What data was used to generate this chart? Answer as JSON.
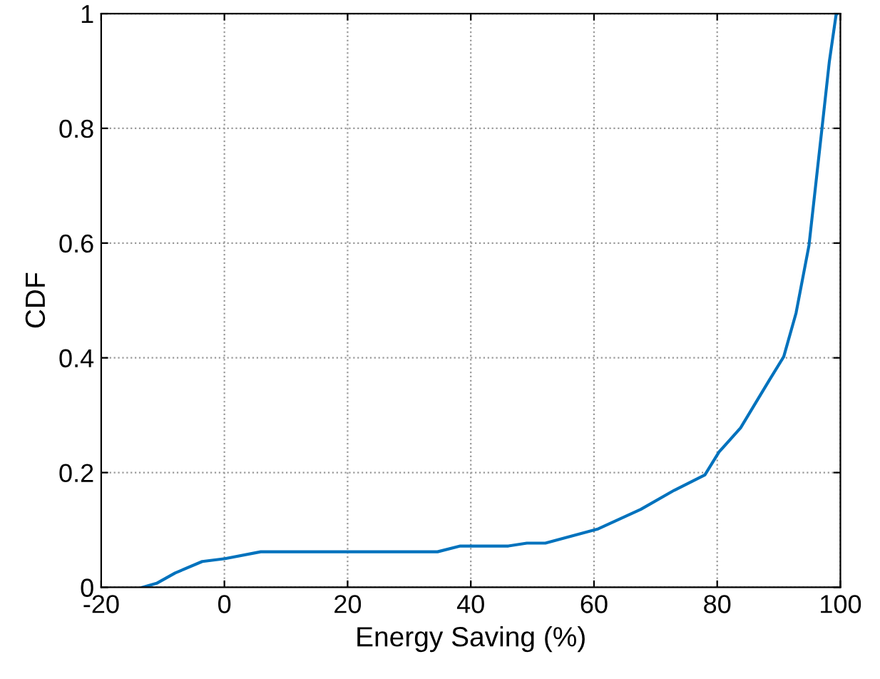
{
  "chart_data": {
    "type": "line",
    "xlabel": "Energy Saving (%)",
    "ylabel": "CDF",
    "series": [
      {
        "color": "#0072bd",
        "x": [
          -13.3,
          -11.0,
          -8.0,
          -3.6,
          0.1,
          5.9,
          9.1,
          34.6,
          38.3,
          46.1,
          49.1,
          52.1,
          60.7,
          67.6,
          73.0,
          78.0,
          80.3,
          83.8,
          88.4,
          90.8,
          92.8,
          94.9,
          97.0,
          98.2,
          99.3,
          99.5
        ],
        "values": [
          0,
          0.007,
          0.025,
          0.045,
          0.05,
          0.062,
          0.062,
          0.062,
          0.072,
          0.072,
          0.077,
          0.077,
          0.102,
          0.136,
          0.169,
          0.196,
          0.236,
          0.278,
          0.36,
          0.402,
          0.478,
          0.596,
          0.799,
          0.916,
          0.998,
          1
        ]
      }
    ],
    "xlim": [
      -20,
      100
    ],
    "xticks": [
      -20,
      0,
      20,
      40,
      60,
      80,
      100
    ],
    "ylim": [
      0,
      1
    ],
    "yticks": [
      0,
      0.2,
      0.4,
      0.6,
      0.8,
      1
    ],
    "grid": true,
    "marker": "none",
    "line_style": "solid"
  }
}
